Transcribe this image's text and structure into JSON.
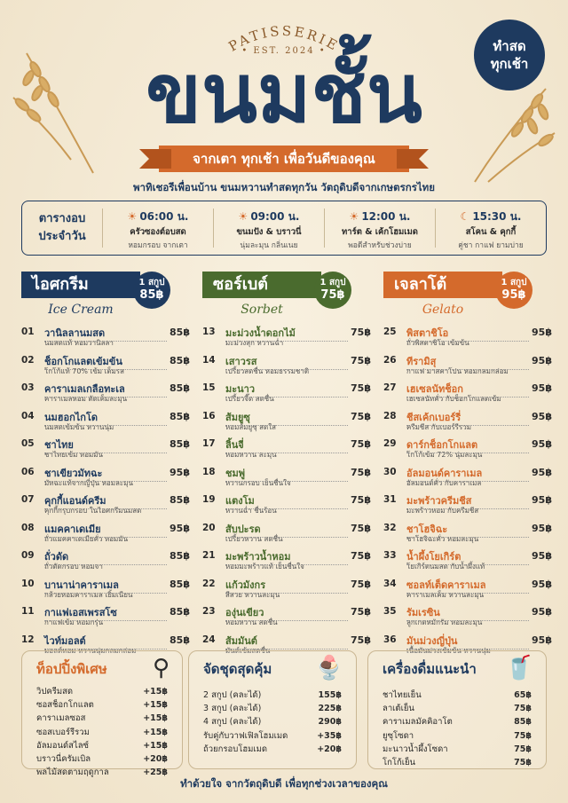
{
  "header": {
    "arc_text": "PATISSERIE",
    "est": "• EST. 2024 •",
    "title": "ขนมชั้น",
    "badge": "ทำสด\nทุกเช้า",
    "ribbon": "จากเตา ทุกเช้า เพื่อวันดีของคุณ",
    "subtitle": "พาทิเชอรีเพื่อนบ้าน ขนมหวานทำสดทุกวัน วัตถุดิบดีจากเกษตรกรไทย"
  },
  "schedule": {
    "title": "ตารางอบ\nประจำวัน",
    "slots": [
      {
        "icon": "☀",
        "time": "06:00 น.",
        "name": "ครัวซองต์อบสด",
        "note": "หอมกรอบ จากเตา"
      },
      {
        "icon": "☀",
        "time": "09:00 น.",
        "name": "ขนมปัง & บราวนี่",
        "note": "นุ่มละมุน กลิ่นเนย"
      },
      {
        "icon": "☀",
        "time": "12:00 น.",
        "name": "ทาร์ต & เค้กโฮมเมด",
        "note": "พอดีสำหรับช่วงบ่าย"
      },
      {
        "icon": "☾",
        "time": "15:30 น.",
        "name": "สโคน & คุกกี้",
        "note": "คู่ชา กาแฟ ยามบ่าย"
      }
    ]
  },
  "columns": [
    {
      "title": "ไอศกรีม",
      "sub": "Ice Cream",
      "scoop": "1 สกูป",
      "price": "85฿",
      "color": "#1e3a5f",
      "items": [
        {
          "n": "01",
          "name": "วานิลลานมสด",
          "desc": "นมสดแท้ หอมวานิลลา",
          "p": "85฿"
        },
        {
          "n": "02",
          "name": "ช็อกโกแลตเข้มข้น",
          "desc": "โกโก้แท้ 70% เข้ม เต็มรส",
          "p": "85฿"
        },
        {
          "n": "03",
          "name": "คาราเมลเกลือทะเล",
          "desc": "คาราเมลหอม ตัดเค็มละมุน",
          "p": "85฿"
        },
        {
          "n": "04",
          "name": "นมฮอกไกโด",
          "desc": "นมสดเข้มข้น หวานนุ่ม",
          "p": "85฿"
        },
        {
          "n": "05",
          "name": "ชาไทย",
          "desc": "ชาไทยเข้ม หอมมัน",
          "p": "85฿"
        },
        {
          "n": "06",
          "name": "ชาเขียวมัทฉะ",
          "desc": "มัทฉะแท้จากญี่ปุ่น หอมละมุน",
          "p": "95฿"
        },
        {
          "n": "07",
          "name": "คุกกี้แอนด์ครีม",
          "desc": "คุกกี้กรุบกรอบ ในไอศกรีมนมสด",
          "p": "85฿"
        },
        {
          "n": "08",
          "name": "แมคคาเดเมีย",
          "desc": "ถั่วแมคคาเดเมียคั่ว หอมมัน",
          "p": "95฿"
        },
        {
          "n": "09",
          "name": "ถั่วดัด",
          "desc": "ถั่วดัดกรอบ หอมจา",
          "p": "85฿"
        },
        {
          "n": "10",
          "name": "บานาน่าคาราเมล",
          "desc": "กล้วยหอมคาราเมล เยิ้มเนียน",
          "p": "85฿"
        },
        {
          "n": "11",
          "name": "กาแฟเอสเพรสโซ",
          "desc": "กาแฟเข้ม หอมกรุ่น",
          "p": "85฿"
        },
        {
          "n": "12",
          "name": "ไวท์มอลต์",
          "desc": "มอลต์หอม หวานนุ่มกลมกล่อม",
          "p": "85฿"
        }
      ]
    },
    {
      "title": "ซอร์เบต์",
      "sub": "Sorbet",
      "scoop": "1 สกูป",
      "price": "75฿",
      "color": "#4a6b2e",
      "items": [
        {
          "n": "13",
          "name": "มะม่วงน้ำดอกไม้",
          "desc": "มะม่วงสุก หวานฉ่ำ",
          "p": "75฿"
        },
        {
          "n": "14",
          "name": "เสาวรส",
          "desc": "เปรี้ยวสดชื่น หอมธรรมชาติ",
          "p": "75฿"
        },
        {
          "n": "15",
          "name": "มะนาว",
          "desc": "เปรี้ยวจี๊ด สดชื่น",
          "p": "75฿"
        },
        {
          "n": "16",
          "name": "ส้มยูซุ",
          "desc": "หอมส้มยูซุ สดใส",
          "p": "75฿"
        },
        {
          "n": "17",
          "name": "ลิ้นจี่",
          "desc": "หอมหวาน ละมุน",
          "p": "75฿"
        },
        {
          "n": "18",
          "name": "ชมพู่",
          "desc": "หวานกรอบ เย็นชื่นใจ",
          "p": "75฿"
        },
        {
          "n": "19",
          "name": "แตงโม",
          "desc": "หวานฉ่ำ ชื่นร้อน",
          "p": "75฿"
        },
        {
          "n": "20",
          "name": "สับปะรด",
          "desc": "เปรี้ยวหวาน สดชื่น",
          "p": "75฿"
        },
        {
          "n": "21",
          "name": "มะพร้าวน้ำหอม",
          "desc": "หอมมะพร้าวแท้ เย็นชื่นใจ",
          "p": "75฿"
        },
        {
          "n": "22",
          "name": "แก้วมังกร",
          "desc": "สีสวย หวานละมุน",
          "p": "75฿"
        },
        {
          "n": "23",
          "name": "องุ่นเขียว",
          "desc": "หอมหวาน สดชื่น",
          "p": "75฿"
        },
        {
          "n": "24",
          "name": "ส้มมันต์",
          "desc": "มันต์เข้มสดชื่น",
          "p": "75฿"
        }
      ]
    },
    {
      "title": "เจลาโต้",
      "sub": "Gelato",
      "scoop": "1 สกูป",
      "price": "95฿",
      "color": "#d46a2c",
      "items": [
        {
          "n": "25",
          "name": "พิสตาชิโอ",
          "desc": "ถั่วพิสตาชิโอ เข้มข้น",
          "p": "95฿"
        },
        {
          "n": "26",
          "name": "ทีรามิสุ",
          "desc": "กาแฟ มาสคาโปน หอมกลมกล่อม",
          "p": "95฿"
        },
        {
          "n": "27",
          "name": "เฮเซลนัทช็อก",
          "desc": "เฮเซลนัทคั่ว กับช็อกโกแลตเข้ม",
          "p": "95฿"
        },
        {
          "n": "28",
          "name": "ชีสเค้กเบอร์รี่",
          "desc": "ครีมชีส กับเบอร์รีรวม",
          "p": "95฿"
        },
        {
          "n": "29",
          "name": "ดาร์กช็อกโกแลต",
          "desc": "โกโก้เข้ม 72% นุ่มละมุน",
          "p": "95฿"
        },
        {
          "n": "30",
          "name": "อัลมอนด์คาราเมล",
          "desc": "อัลมอนด์คั่ว กับคาราเมล",
          "p": "95฿"
        },
        {
          "n": "31",
          "name": "มะพร้าวครีมชีส",
          "desc": "มะพร้าวหอม กับครีมชีส",
          "p": "95฿"
        },
        {
          "n": "32",
          "name": "ชาโฮจิฉะ",
          "desc": "ชาโฮจิฉะคั่ว หอมละมุน",
          "p": "95฿"
        },
        {
          "n": "33",
          "name": "น้ำผึ้งโยเกิร์ต",
          "desc": "โยเกิร์ตนมสด กับน้ำผึ้งแท้",
          "p": "95฿"
        },
        {
          "n": "34",
          "name": "ซอลท์เต็ดคาราเมล",
          "desc": "คาราเมลเค็ม หวานละมุน",
          "p": "95฿"
        },
        {
          "n": "35",
          "name": "รัมเรซิน",
          "desc": "ลูกเกดหมักรัม หอมละมุน",
          "p": "95฿"
        },
        {
          "n": "36",
          "name": "มันม่วงญี่ปุ่น",
          "desc": "เนื้อมันม่วงเข้มข้น หวานนุ่ม",
          "p": "95฿"
        }
      ]
    }
  ],
  "toppings": {
    "title": "ท็อปปิ้งพิเศษ",
    "items": [
      {
        "name": "วิปครีมสด",
        "p": "+15฿"
      },
      {
        "name": "ซอสช็อกโกแลต",
        "p": "+15฿"
      },
      {
        "name": "คาราเมลซอส",
        "p": "+15฿"
      },
      {
        "name": "ซอสเบอร์รีรวม",
        "p": "+15฿"
      },
      {
        "name": "อัลมอนด์สไลซ์",
        "p": "+15฿"
      },
      {
        "name": "บราวนี่ครัมเบิล",
        "p": "+20฿"
      },
      {
        "name": "พลไม้สดตามฤดูกาล",
        "p": "+25฿"
      }
    ]
  },
  "sets": {
    "title": "จัดชุดสุดคุ้ม",
    "items": [
      {
        "name": "2 สกูป (คละได้)",
        "p": "155฿"
      },
      {
        "name": "3 สกูป (คละได้)",
        "p": "225฿"
      },
      {
        "name": "4 สกูป (คละได้)",
        "p": "290฿"
      },
      {
        "name": "รับคู่กับวาฟเฟิลโฮมเมด",
        "p": "+35฿"
      },
      {
        "name": "ถ้วยกรอบโฮมเมด",
        "p": "+20฿"
      }
    ]
  },
  "drinks": {
    "title": "เครื่องดื่มแนะนำ",
    "items": [
      {
        "name": "ชาไทยเย็น",
        "p": "65฿"
      },
      {
        "name": "ลาเต้เย็น",
        "p": "75฿"
      },
      {
        "name": "คาราเมลมัคคิอาโต",
        "p": "85฿"
      },
      {
        "name": "ยูซุโซดา",
        "p": "75฿"
      },
      {
        "name": "มะนาวน้ำผึ้งโซดา",
        "p": "75฿"
      },
      {
        "name": "โกโก้เย็น",
        "p": "75฿"
      }
    ]
  },
  "footer": "ทำด้วยใจ จากวัตถุดิบดี เพื่อทุกช่วงเวลาของคุณ"
}
